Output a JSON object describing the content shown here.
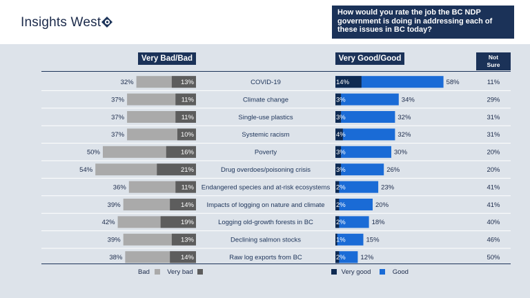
{
  "brand": {
    "name": "Insights West"
  },
  "question": "How would you rate the job the BC NDP government is doing in addressing each of these issues in BC today?",
  "headers": {
    "bad": "Very Bad/Bad",
    "good": "Very Good/Good",
    "not_sure": "Not Sure"
  },
  "legend": {
    "left": [
      {
        "label": "Bad",
        "color": "#aaaaaa"
      },
      {
        "label": "Very bad",
        "color": "#5d5d5d"
      }
    ],
    "right": [
      {
        "label": "Very good",
        "color": "#0e2a52"
      },
      {
        "label": "Good",
        "color": "#1a6bd6"
      }
    ]
  },
  "chart_data": {
    "type": "bar",
    "orientation": "horizontal-diverging",
    "categories": [
      "COVID-19",
      "Climate change",
      "Single-use plastics",
      "Systemic racism",
      "Poverty",
      "Drug overdoes/poisoning crisis",
      "Endangered species and at-risk ecosystems",
      "Impacts of logging on nature and climate",
      "Logging old-growth forests in BC",
      "Declining salmon stocks",
      "Raw log exports from BC"
    ],
    "series": [
      {
        "name": "Very bad",
        "values": [
          13,
          11,
          11,
          10,
          16,
          21,
          11,
          14,
          19,
          13,
          14
        ],
        "color": "#5d5d5d"
      },
      {
        "name": "Very Bad/Bad",
        "values": [
          32,
          37,
          37,
          37,
          50,
          54,
          36,
          39,
          42,
          39,
          38
        ],
        "color": "#aaaaaa"
      },
      {
        "name": "Very good",
        "values": [
          14,
          3,
          3,
          4,
          3,
          3,
          2,
          2,
          2,
          1,
          2
        ],
        "color": "#0e2a52"
      },
      {
        "name": "Very Good/Good",
        "values": [
          58,
          34,
          32,
          32,
          30,
          26,
          23,
          20,
          18,
          15,
          12
        ],
        "color": "#1a6bd6"
      },
      {
        "name": "Not Sure",
        "values": [
          11,
          29,
          31,
          31,
          20,
          20,
          41,
          41,
          40,
          46,
          50
        ]
      }
    ],
    "value_suffix": "%"
  }
}
